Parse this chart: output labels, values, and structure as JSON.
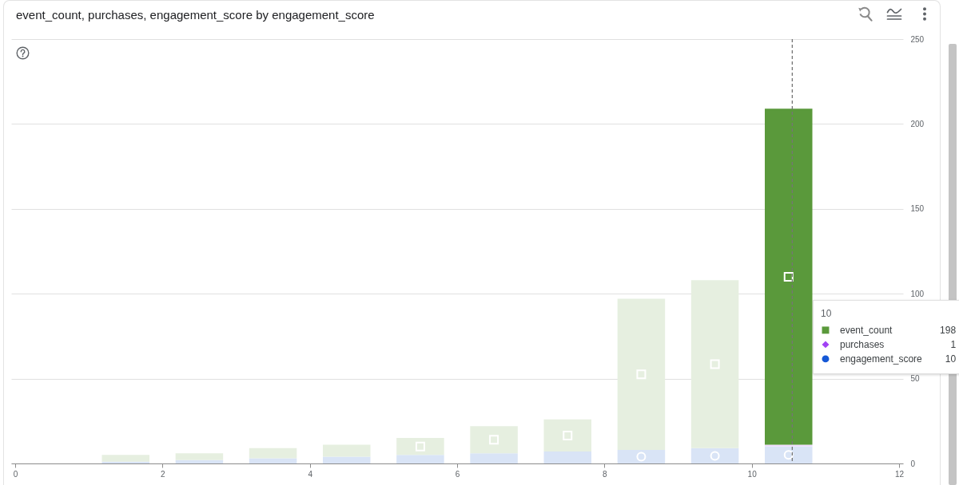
{
  "chart_data": {
    "type": "bar",
    "title": "event_count, purchases, engagement_score by engagement_score",
    "x": [
      1.5,
      2.5,
      3.5,
      4.5,
      5.5,
      6.5,
      7.5,
      8.5,
      9.5,
      10.5
    ],
    "stacked": true,
    "series": [
      {
        "name": "engagement_score",
        "color": "#1558d6",
        "marker": "circle",
        "colors": [
          "#d9e4f6",
          "#d9e4f6",
          "#d9e4f6",
          "#d9e4f6",
          "#d9e4f6",
          "#d9e4f6",
          "#d9e4f6",
          "#d9e4f6",
          "#d9e4f6",
          "#d9e4f6"
        ],
        "values": [
          1,
          2,
          3,
          4,
          5,
          6,
          7,
          8,
          9,
          10
        ]
      },
      {
        "name": "purchases",
        "color": "#a142f4",
        "marker": "diamond",
        "colors": [
          null,
          null,
          null,
          null,
          null,
          null,
          null,
          null,
          null,
          "#eddcfd"
        ],
        "values": [
          null,
          null,
          null,
          null,
          null,
          null,
          null,
          null,
          null,
          1
        ]
      },
      {
        "name": "event_count",
        "color": "#5a993b",
        "marker": "square",
        "colors": [
          "#e6efe0",
          "#e6efe0",
          "#e6efe0",
          "#e6efe0",
          "#e6efe0",
          "#e6efe0",
          "#e6efe0",
          "#e6efe0",
          "#e6efe0",
          "#5a993b"
        ],
        "values": [
          4,
          4,
          6,
          7,
          10,
          16,
          19,
          89,
          99,
          198
        ]
      }
    ],
    "xlim": [
      0,
      12
    ],
    "xticks": [
      0,
      2,
      4,
      6,
      8,
      10,
      12
    ],
    "ylim": [
      0,
      250
    ],
    "yticks": [
      0,
      50,
      100,
      150,
      200,
      250
    ],
    "grid": "y",
    "legend": "right",
    "legend_title": "10",
    "annotations": [
      "198",
      "1",
      "10"
    ],
    "ref_lines": [
      {
        "axis": "x",
        "value": 10.55,
        "line_style": "dashed",
        "color": "#757575"
      }
    ]
  }
}
